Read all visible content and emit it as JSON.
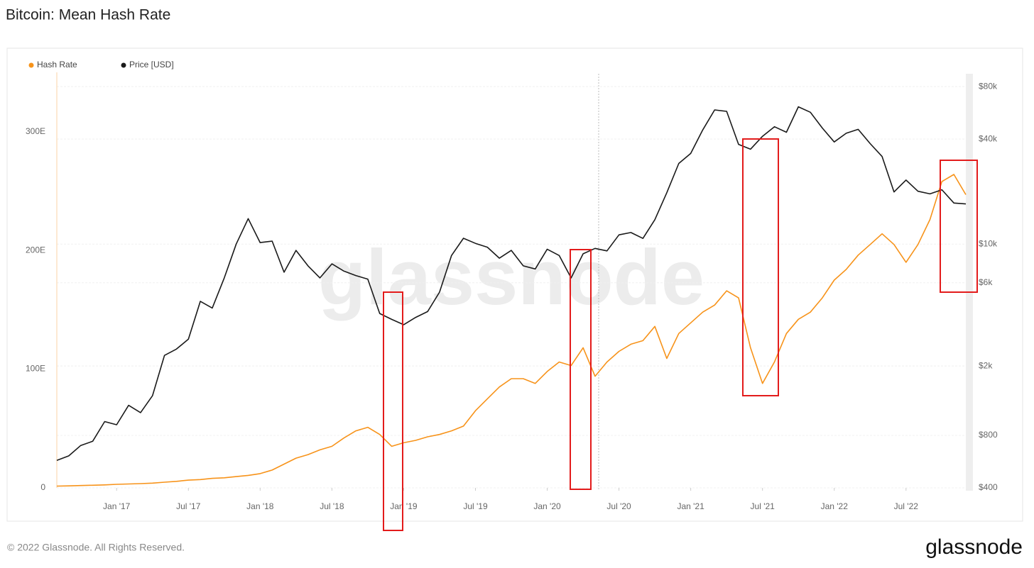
{
  "chart_data": {
    "type": "line",
    "title": "Bitcoin: Mean Hash Rate",
    "watermark": "glassnode",
    "footer": "© 2022 Glassnode. All Rights Reserved.",
    "brand": "glassnode",
    "x": [
      "2016-08",
      "2016-09",
      "2016-10",
      "2016-11",
      "2016-12",
      "2017-01",
      "2017-02",
      "2017-03",
      "2017-04",
      "2017-05",
      "2017-06",
      "2017-07",
      "2017-08",
      "2017-09",
      "2017-10",
      "2017-11",
      "2017-12",
      "2018-01",
      "2018-02",
      "2018-03",
      "2018-04",
      "2018-05",
      "2018-06",
      "2018-07",
      "2018-08",
      "2018-09",
      "2018-10",
      "2018-11",
      "2018-12",
      "2019-01",
      "2019-02",
      "2019-03",
      "2019-04",
      "2019-05",
      "2019-06",
      "2019-07",
      "2019-08",
      "2019-09",
      "2019-10",
      "2019-11",
      "2019-12",
      "2020-01",
      "2020-02",
      "2020-03",
      "2020-04",
      "2020-05",
      "2020-06",
      "2020-07",
      "2020-08",
      "2020-09",
      "2020-10",
      "2020-11",
      "2020-12",
      "2021-01",
      "2021-02",
      "2021-03",
      "2021-04",
      "2021-05",
      "2021-06",
      "2021-07",
      "2021-08",
      "2021-09",
      "2021-10",
      "2021-11",
      "2021-12",
      "2022-01",
      "2022-02",
      "2022-03",
      "2022-04",
      "2022-05",
      "2022-06",
      "2022-07",
      "2022-08",
      "2022-09",
      "2022-10",
      "2022-11",
      "2022-12"
    ],
    "series": [
      {
        "name": "Hash Rate",
        "color": "#f7931a",
        "axis": "y",
        "values": [
          1.5,
          1.7,
          2,
          2.2,
          2.5,
          3,
          3.3,
          3.6,
          4,
          4.8,
          5.5,
          6.5,
          7,
          8,
          8.5,
          9.5,
          10.5,
          12,
          15,
          20,
          25,
          28,
          32,
          35,
          42,
          48,
          51,
          45,
          35,
          38,
          40,
          43,
          45,
          48,
          52,
          65,
          75,
          85,
          92,
          92,
          88,
          98,
          106,
          103,
          118,
          94,
          106,
          115,
          121,
          124,
          136,
          109,
          130,
          139,
          148,
          154,
          166,
          160,
          118,
          88,
          106,
          130,
          142,
          148,
          160,
          175,
          184,
          196,
          205,
          214,
          205,
          190,
          205,
          226,
          258,
          264,
          247
        ]
      },
      {
        "name": "Price [USD]",
        "color": "#1a1a1a",
        "axis": "y2",
        "values": [
          575,
          610,
          700,
          740,
          960,
          920,
          1190,
          1080,
          1350,
          2300,
          2500,
          2850,
          4700,
          4300,
          6400,
          10000,
          14000,
          10200,
          10400,
          6900,
          9200,
          7500,
          6400,
          7700,
          7000,
          6600,
          6300,
          4000,
          3700,
          3450,
          3800,
          4100,
          5300,
          8600,
          10800,
          10100,
          9600,
          8300,
          9200,
          7500,
          7200,
          9350,
          8600,
          6400,
          8800,
          9450,
          9140,
          11300,
          11650,
          10780,
          13800,
          19700,
          29000,
          33100,
          45100,
          58800,
          57700,
          37300,
          35000,
          41500,
          47100,
          43800,
          61300,
          57000,
          46300,
          38500,
          43200,
          45500,
          37700,
          31800,
          19900,
          23300,
          20100,
          19400,
          20500,
          17200,
          17000
        ]
      }
    ],
    "xlim": [
      "2016-08",
      "2022-12"
    ],
    "xticks": [
      {
        "value": "2017-01",
        "label": "Jan '17"
      },
      {
        "value": "2017-07",
        "label": "Jul '17"
      },
      {
        "value": "2018-01",
        "label": "Jan '18"
      },
      {
        "value": "2018-07",
        "label": "Jul '18"
      },
      {
        "value": "2019-01",
        "label": "Jan '19"
      },
      {
        "value": "2019-07",
        "label": "Jul '19"
      },
      {
        "value": "2020-01",
        "label": "Jan '20"
      },
      {
        "value": "2020-07",
        "label": "Jul '20"
      },
      {
        "value": "2021-01",
        "label": "Jan '21"
      },
      {
        "value": "2021-07",
        "label": "Jul '21"
      },
      {
        "value": "2022-01",
        "label": "Jan '22"
      },
      {
        "value": "2022-07",
        "label": "Jul '22"
      }
    ],
    "ylim": [
      0,
      350
    ],
    "yticks": [
      0,
      {
        "value": 100,
        "label": "100E"
      },
      {
        "value": 200,
        "label": "200E"
      },
      {
        "value": 300,
        "label": "300E"
      }
    ],
    "y2lim": [
      400,
      96600
    ],
    "y2scale": "log",
    "y2ticks": [
      {
        "value": 400,
        "label": "$400"
      },
      {
        "value": 800,
        "label": "$800"
      },
      {
        "value": 2000,
        "label": "$2k"
      },
      {
        "value": 6000,
        "label": "$6k"
      },
      {
        "value": 10000,
        "label": "$10k"
      },
      {
        "value": 40000,
        "label": "$40k"
      },
      {
        "value": 80000,
        "label": "$80k"
      }
    ],
    "grid": true,
    "legend": "top-left"
  }
}
